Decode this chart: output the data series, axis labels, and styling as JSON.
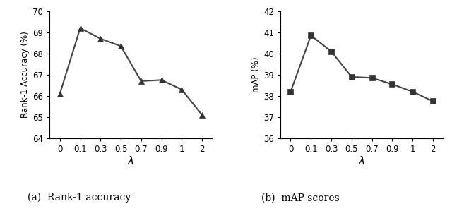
{
  "lambda_ticks": [
    0,
    0.1,
    0.3,
    0.5,
    0.7,
    0.9,
    1,
    2
  ],
  "lambda_labels": [
    "0",
    "0.1",
    "0.3",
    "0.5",
    "0.7",
    "0.9",
    "1",
    "2"
  ],
  "rank1_values": [
    66.1,
    69.2,
    68.7,
    68.35,
    66.7,
    66.75,
    66.3,
    65.1
  ],
  "map_values": [
    38.2,
    40.85,
    40.1,
    38.9,
    38.85,
    38.55,
    38.2,
    37.75
  ],
  "rank1_ylim": [
    64,
    70
  ],
  "rank1_yticks": [
    64,
    65,
    66,
    67,
    68,
    69,
    70
  ],
  "map_ylim": [
    36,
    42
  ],
  "map_yticks": [
    36,
    37,
    38,
    39,
    40,
    41,
    42
  ],
  "xlabel": "λ",
  "rank1_ylabel": "Rank-1 Accuracy (%)",
  "map_ylabel": "mAP (%)",
  "rank1_label": "(a)  Rank-1 accuracy",
  "map_label": "(b)  mAP scores",
  "line_color": "#444444",
  "marker_color": "#333333",
  "bg_color": "#ffffff"
}
